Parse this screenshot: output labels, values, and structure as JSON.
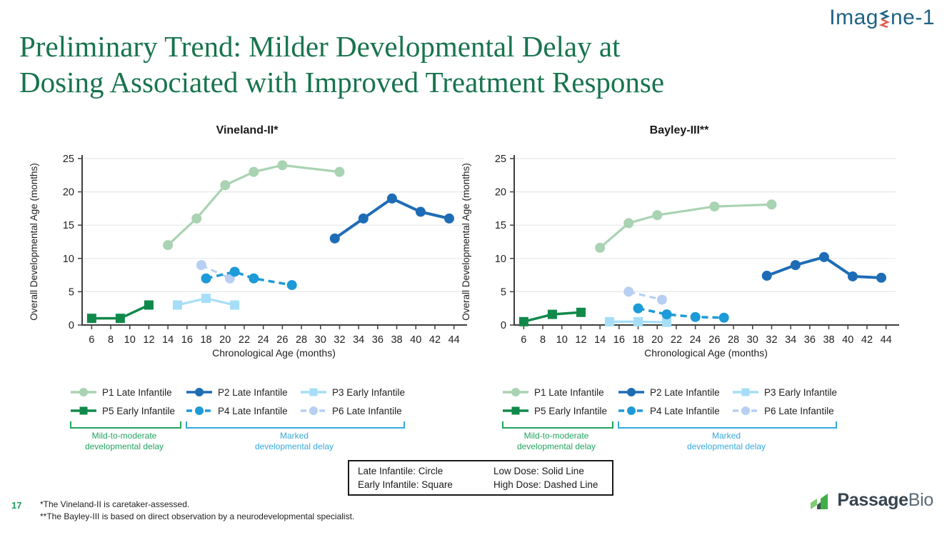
{
  "logo_imagine": {
    "part1": "Imag",
    "part2": "ne-1"
  },
  "title": {
    "line1": "Preliminary Trend: Milder Developmental Delay at",
    "line2": "Dosing Associated with Improved Treatment Response"
  },
  "colors": {
    "title_green": "#17744e",
    "bracket_green": "#23a35f",
    "bracket_blue": "#35a9dd",
    "page_number_green": "#21a05f",
    "imagine_logo_blue": "#1f6287",
    "helix_red": "#e05a4e",
    "axis": "#3f3f3f",
    "gridline": "#e5e8ea",
    "passage_dark": "#36444f",
    "passage_gray": "#5c6b77",
    "passage_green_light": "#7fcb6f",
    "passage_green": "#3fae49"
  },
  "chart_data": [
    {
      "type": "line",
      "title": "Vineland-II*",
      "xlabel": "Chronological Age (months)",
      "ylabel": "Overall Developmental Age (months)",
      "xlim": [
        5,
        45
      ],
      "ylim": [
        0,
        25
      ],
      "x_ticks": [
        6,
        8,
        10,
        12,
        14,
        16,
        18,
        20,
        22,
        24,
        26,
        28,
        30,
        32,
        34,
        36,
        38,
        40,
        42,
        44
      ],
      "y_ticks": [
        0,
        5,
        10,
        15,
        20,
        25
      ],
      "grid": "horizontal",
      "series": [
        {
          "name": "P1 Late Infantile",
          "group": "Late Infantile",
          "dose": "Low Dose",
          "marker": "circle",
          "line": "solid",
          "color": "#a9d3b2",
          "width": 3.2,
          "points": [
            [
              14,
              12
            ],
            [
              17,
              16
            ],
            [
              20,
              21
            ],
            [
              23,
              23
            ],
            [
              26,
              24
            ],
            [
              32,
              23
            ]
          ]
        },
        {
          "name": "P5 Early Infantile",
          "group": "Early Infantile",
          "dose": "Low Dose",
          "marker": "square",
          "line": "solid",
          "color": "#10894b",
          "width": 3.5,
          "points": [
            [
              6,
              1
            ],
            [
              9,
              1
            ],
            [
              12,
              3
            ]
          ]
        },
        {
          "name": "P3 Early Infantile",
          "group": "Early Infantile",
          "dose": "Low Dose",
          "marker": "square",
          "line": "solid",
          "color": "#a6def7",
          "width": 3.2,
          "points": [
            [
              15,
              3
            ],
            [
              18,
              4
            ],
            [
              21,
              3
            ]
          ]
        },
        {
          "name": "P6 Late Infantile",
          "group": "Late Infantile",
          "dose": "High Dose",
          "marker": "circle",
          "line": "dashed",
          "color": "#b7cff2",
          "width": 3,
          "points": [
            [
              17.5,
              9
            ],
            [
              20.5,
              7
            ]
          ]
        },
        {
          "name": "P4 Late Infantile",
          "group": "Late Infantile",
          "dose": "High Dose",
          "marker": "circle",
          "line": "dashed",
          "color": "#1d9ad8",
          "width": 3.5,
          "points": [
            [
              18,
              7
            ],
            [
              21,
              8
            ],
            [
              23,
              7
            ],
            [
              27,
              6
            ]
          ]
        },
        {
          "name": "P2 Late Infantile",
          "group": "Late Infantile",
          "dose": "Low Dose",
          "marker": "circle",
          "line": "solid",
          "color": "#1e6cb5",
          "width": 4,
          "points": [
            [
              31.5,
              13
            ],
            [
              34.5,
              16
            ],
            [
              37.5,
              19
            ],
            [
              40.5,
              17
            ],
            [
              43.5,
              16
            ]
          ]
        }
      ]
    },
    {
      "type": "line",
      "title": "Bayley-III**",
      "xlabel": "Chronological Age (months)",
      "ylabel": "Overall Developmental Age (months)",
      "xlim": [
        5,
        45
      ],
      "ylim": [
        0,
        25
      ],
      "x_ticks": [
        6,
        8,
        10,
        12,
        14,
        16,
        18,
        20,
        22,
        24,
        26,
        28,
        30,
        32,
        34,
        36,
        38,
        40,
        42,
        44
      ],
      "y_ticks": [
        0,
        5,
        10,
        15,
        20,
        25
      ],
      "grid": "horizontal",
      "series": [
        {
          "name": "P1 Late Infantile",
          "group": "Late Infantile",
          "dose": "Low Dose",
          "marker": "circle",
          "line": "solid",
          "color": "#a9d3b2",
          "width": 3.2,
          "points": [
            [
              14,
              11.6
            ],
            [
              17,
              15.3
            ],
            [
              20,
              16.5
            ],
            [
              26,
              17.8
            ],
            [
              32,
              18.1
            ]
          ]
        },
        {
          "name": "P5 Early Infantile",
          "group": "Early Infantile",
          "dose": "Low Dose",
          "marker": "square",
          "line": "solid",
          "color": "#10894b",
          "width": 3.5,
          "points": [
            [
              6,
              0.5
            ],
            [
              9,
              1.6
            ],
            [
              12,
              1.9
            ]
          ]
        },
        {
          "name": "P3 Early Infantile",
          "group": "Early Infantile",
          "dose": "Low Dose",
          "marker": "square",
          "line": "solid",
          "color": "#a6def7",
          "width": 3.2,
          "points": [
            [
              15,
              0.5
            ],
            [
              18,
              0.5
            ],
            [
              21,
              0.4
            ]
          ]
        },
        {
          "name": "P6 Late Infantile",
          "group": "Late Infantile",
          "dose": "High Dose",
          "marker": "circle",
          "line": "dashed",
          "color": "#b7cff2",
          "width": 3,
          "points": [
            [
              17,
              5
            ],
            [
              20.5,
              3.8
            ]
          ]
        },
        {
          "name": "P4 Late Infantile",
          "group": "Late Infantile",
          "dose": "High Dose",
          "marker": "circle",
          "line": "dashed",
          "color": "#1d9ad8",
          "width": 3.5,
          "points": [
            [
              18,
              2.5
            ],
            [
              21,
              1.6
            ],
            [
              24,
              1.2
            ],
            [
              27,
              1.1
            ]
          ]
        },
        {
          "name": "P2 Late Infantile",
          "group": "Late Infantile",
          "dose": "Low Dose",
          "marker": "circle",
          "line": "solid",
          "color": "#1e6cb5",
          "width": 4,
          "points": [
            [
              31.5,
              7.4
            ],
            [
              34.5,
              9
            ],
            [
              37.5,
              10.2
            ],
            [
              40.5,
              7.3
            ],
            [
              43.5,
              7.1
            ]
          ]
        }
      ]
    }
  ],
  "legend": {
    "items": [
      {
        "label": "P1 Late Infantile",
        "color": "#a9d3b2",
        "marker": "circle",
        "dash": false
      },
      {
        "label": "P2 Late Infantile",
        "color": "#1e6cb5",
        "marker": "circle",
        "dash": false
      },
      {
        "label": "P3 Early Infantile",
        "color": "#a6def7",
        "marker": "square",
        "dash": false
      },
      {
        "label": "P5 Early Infantile",
        "color": "#10894b",
        "marker": "square",
        "dash": false
      },
      {
        "label": "P4 Late Infantile",
        "color": "#1d9ad8",
        "marker": "circle",
        "dash": true
      },
      {
        "label": "P6 Late Infantile",
        "color": "#b7cff2",
        "marker": "circle",
        "dash": true
      }
    ]
  },
  "brackets": {
    "mild": {
      "line1": "Mild-to-moderate",
      "line2": "developmental delay"
    },
    "marked": {
      "line1": "Marked",
      "line2": "developmental delay"
    }
  },
  "dose_box": {
    "late": "Late Infantile: Circle",
    "early": "Early Infantile: Square",
    "low": "Low Dose: Solid Line",
    "high": "High Dose: Dashed Line"
  },
  "footer": {
    "page": "17",
    "note1": "*The Vineland-II is caretaker-assessed.",
    "note2": "**The Bayley-III is based on direct observation by a neurodevelopmental specialist."
  },
  "logo_passage": {
    "part1": "Passage",
    "part2": "Bio"
  }
}
